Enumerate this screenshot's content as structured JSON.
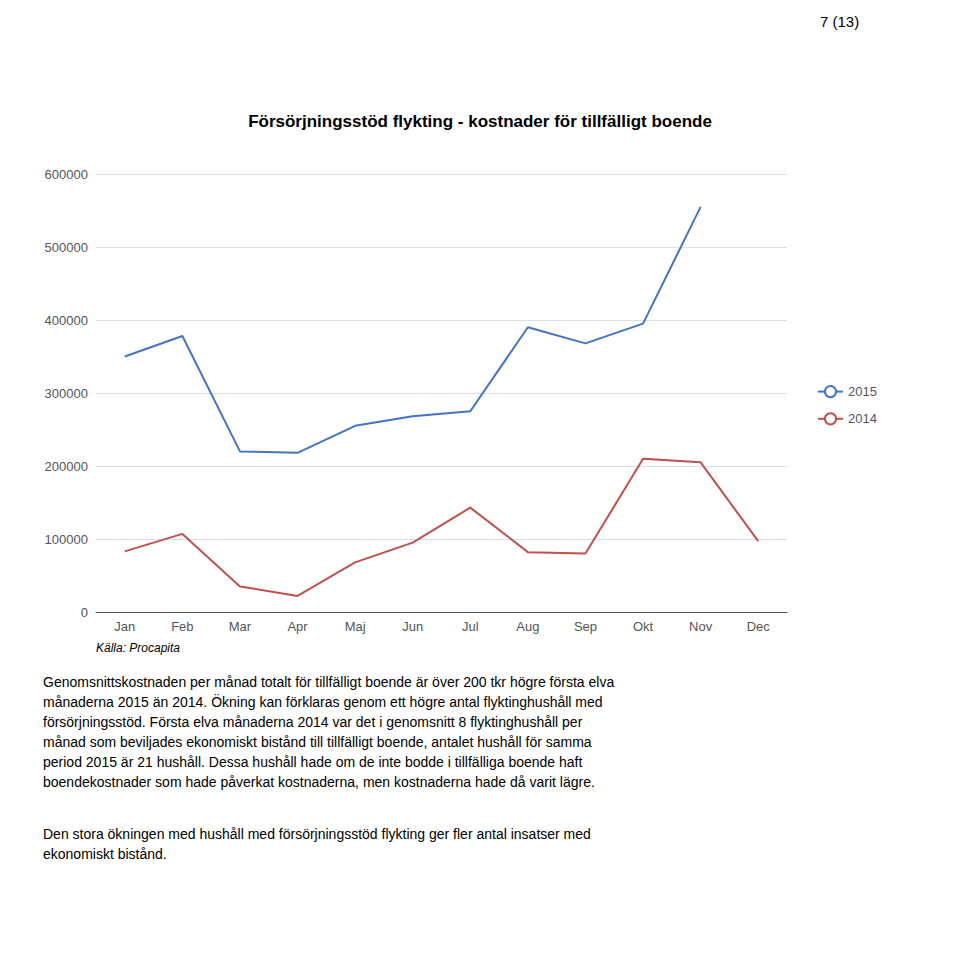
{
  "chart_data": {
    "type": "line",
    "title": "Försörjningsstöd flykting - kostnader för tillfälligt boende",
    "categories": [
      "Jan",
      "Feb",
      "Mar",
      "Apr",
      "Maj",
      "Jun",
      "Jul",
      "Aug",
      "Sep",
      "Okt",
      "Nov",
      "Dec"
    ],
    "series": [
      {
        "name": "2015",
        "color": "#4472C4",
        "values": [
          350000,
          378000,
          220000,
          218000,
          255000,
          268000,
          275000,
          390000,
          368000,
          395000,
          555000,
          null
        ]
      },
      {
        "name": "2014",
        "color": "#C0504D",
        "values": [
          83000,
          107000,
          35000,
          22000,
          68000,
          95000,
          143000,
          82000,
          80000,
          210000,
          205000,
          97000
        ]
      }
    ],
    "ylim": [
      0,
      600000
    ],
    "yticks": [
      0,
      100000,
      200000,
      300000,
      400000,
      500000,
      600000
    ],
    "grid": true,
    "legend": "right",
    "annotations": [
      "7 (13)",
      "Källa: Procapita",
      "Genomsnittskostnaden per månad totalt för tillfälligt boende är över 200 tkr högre första elva\nmånaderna 2015 än 2014. Ökning kan förklaras genom ett högre antal flyktinghushåll med\nförsörjningsstöd. Första elva månaderna 2014 var det i genomsnitt 8 flyktinghushåll per\nmånad som beviljades ekonomiskt bistånd till tillfälligt boende, antalet hushåll för samma\nperiod 2015 är 21 hushåll. Dessa hushåll hade om de inte bodde i tillfälliga boende haft\nboendekostnader som hade påverkat kostnaderna, men kostnaderna hade då varit lägre.",
      "Den stora ökningen med hushåll med försörjningsstöd flykting ger fler antal insatser med\nekonomiskt bistånd."
    ]
  }
}
